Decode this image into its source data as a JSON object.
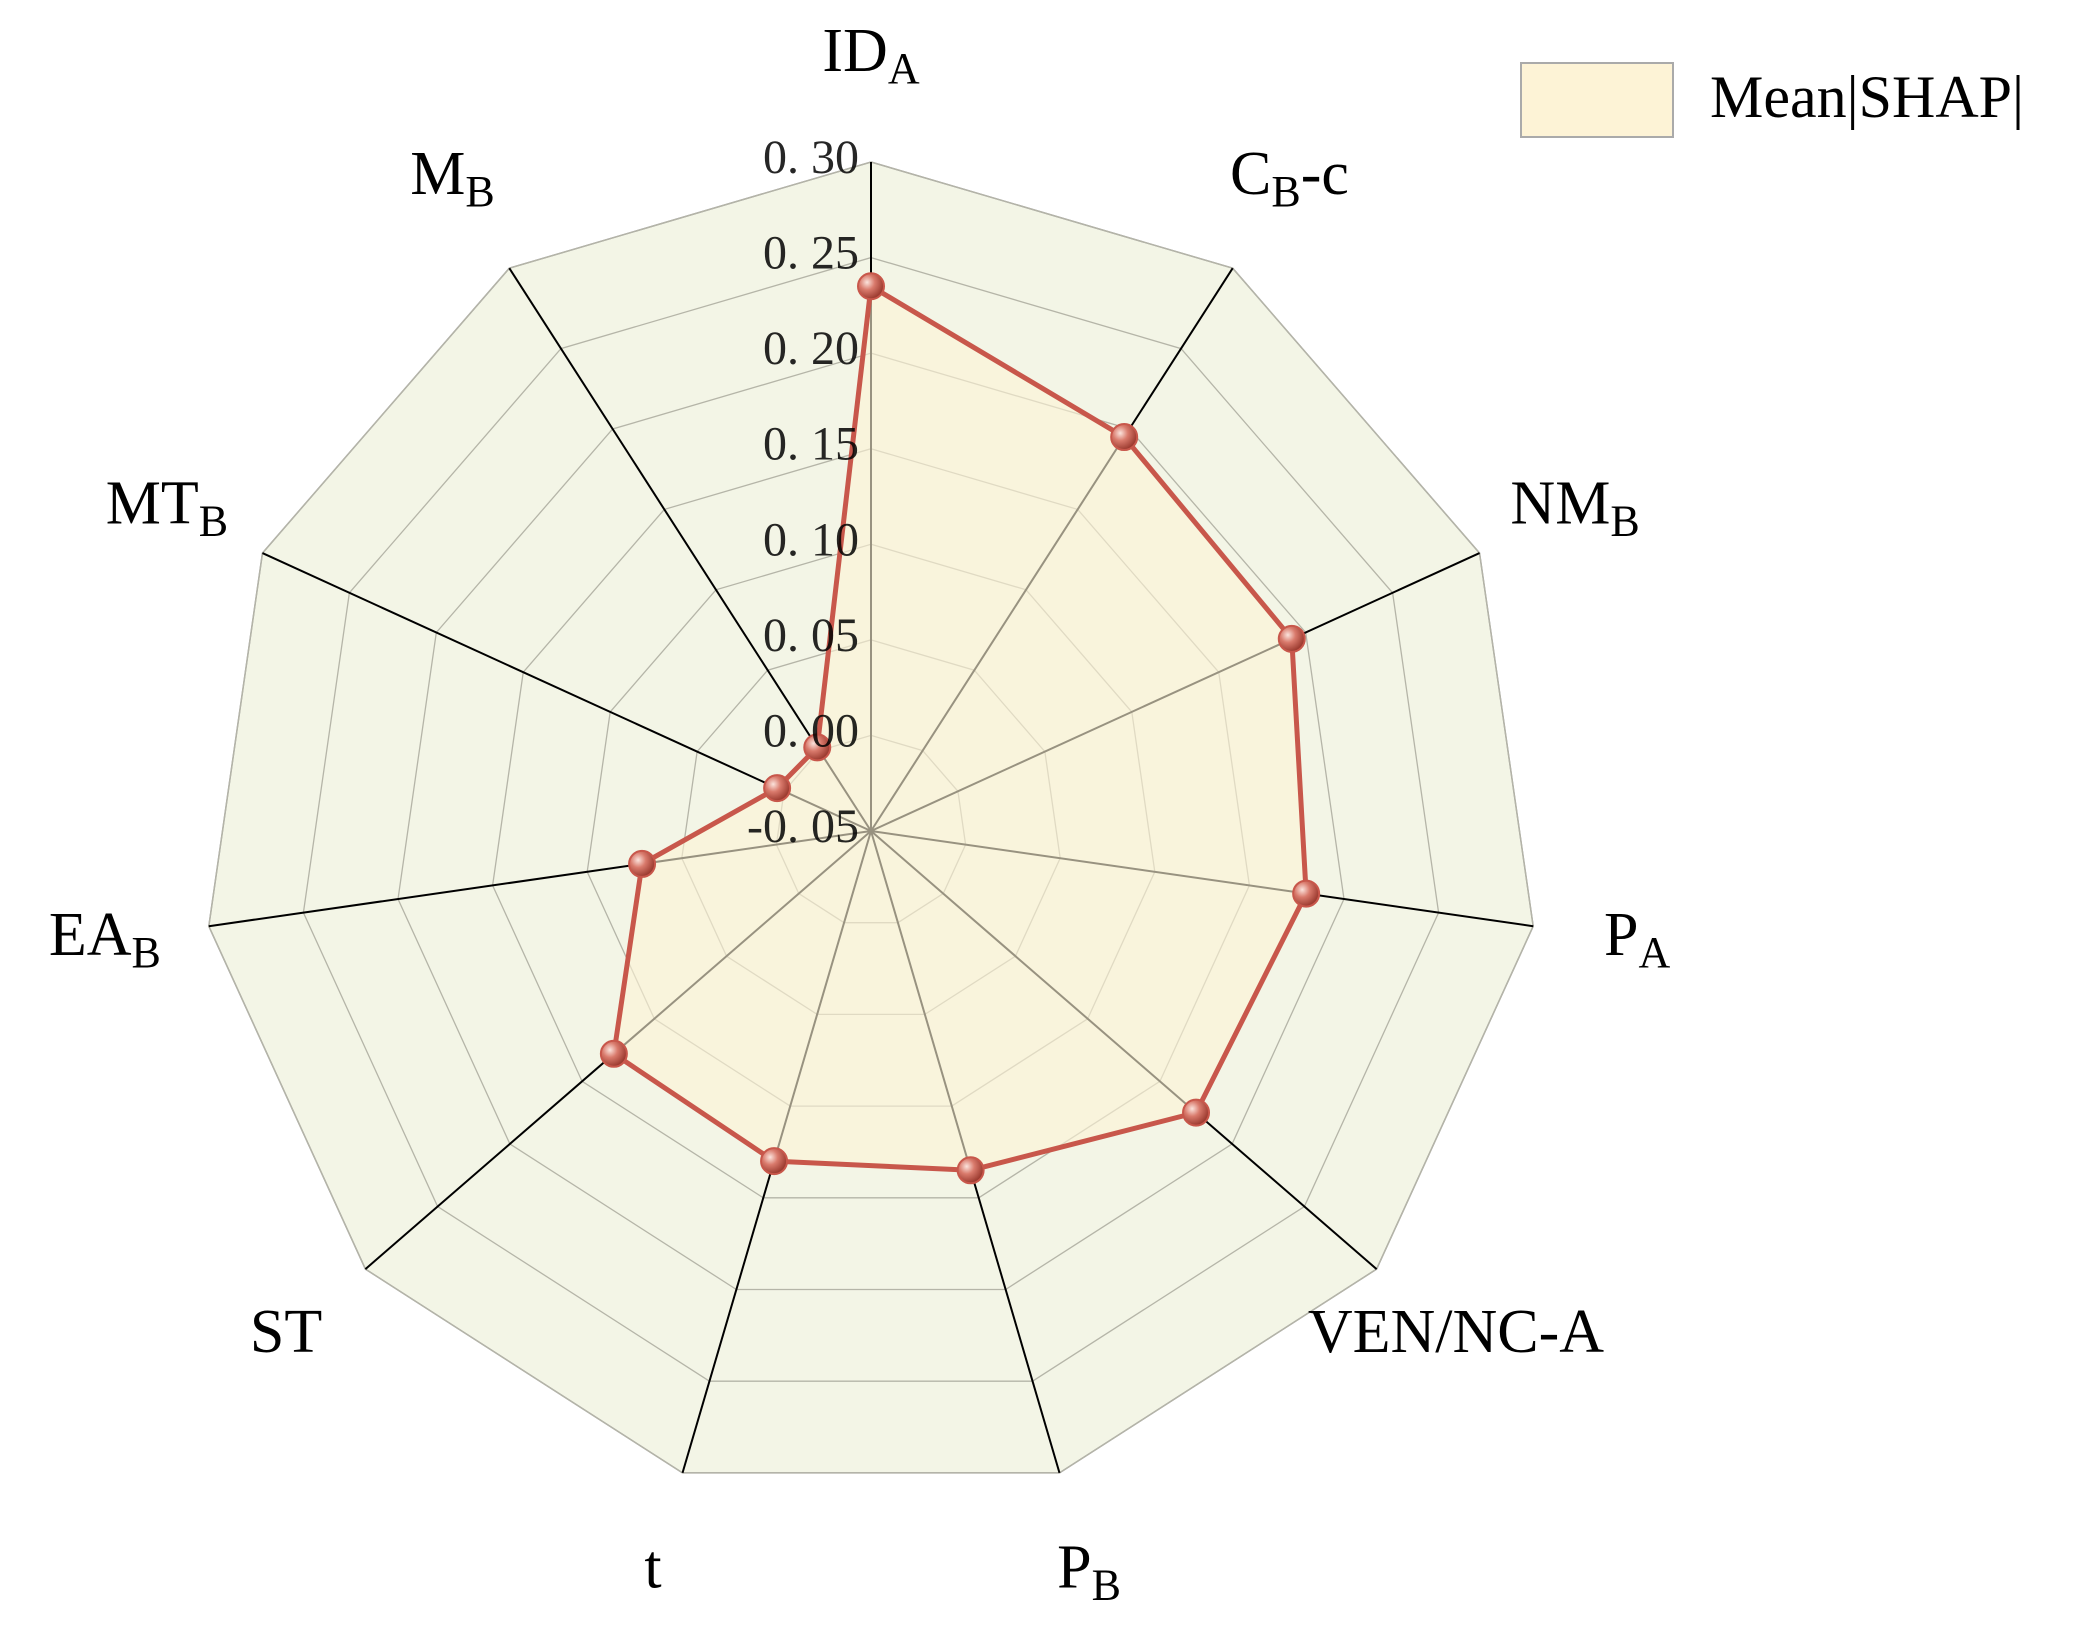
{
  "chart_data": {
    "type": "radar",
    "categories": [
      [
        "ID",
        "A"
      ],
      [
        "C",
        "B",
        "-c"
      ],
      [
        "NM",
        "B"
      ],
      [
        "P",
        "A"
      ],
      [
        "VEN/NC-A"
      ],
      [
        "P",
        "B"
      ],
      [
        "t"
      ],
      [
        "ST"
      ],
      [
        "EA",
        "B"
      ],
      [
        "MT",
        "B"
      ],
      [
        "M",
        "B"
      ]
    ],
    "series": [
      {
        "name": "Mean|SHAP|",
        "color": "#c8574b",
        "fill": "#fdf3d6",
        "values": [
          0.235,
          0.195,
          0.192,
          0.18,
          0.175,
          0.135,
          0.13,
          0.128,
          0.071,
          0.004,
          0.002
        ]
      }
    ],
    "ylim": [
      -0.05,
      0.3
    ],
    "yticks": [
      {
        "value": -0.05,
        "label": "-0. 05"
      },
      {
        "value": 0,
        "label": "0. 00"
      },
      {
        "value": 0.05,
        "label": "0. 05"
      },
      {
        "value": 0.1,
        "label": "0. 10"
      },
      {
        "value": 0.15,
        "label": "0. 15"
      },
      {
        "value": 0.2,
        "label": "0. 20"
      },
      {
        "value": 0.25,
        "label": "0. 25"
      },
      {
        "value": 0.3,
        "label": "0. 30"
      }
    ],
    "grid": true,
    "legend": "upper right",
    "background": "#f3f5e6"
  }
}
